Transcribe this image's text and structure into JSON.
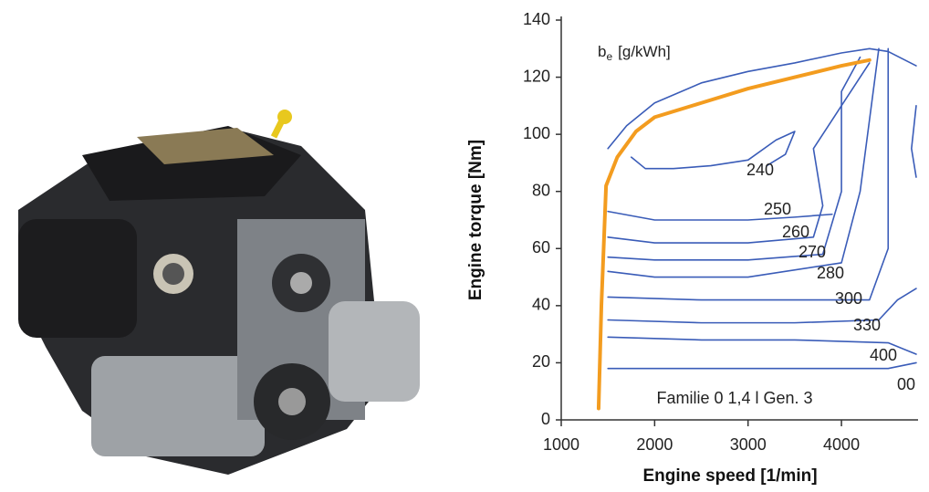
{
  "chart_data": {
    "type": "line",
    "xlabel": "Engine speed  [1/min]",
    "ylabel": "Engine torque  [Nm]",
    "zlabel_symbol": "b",
    "zlabel_sub": "e",
    "zlabel_unit": "[g/kWh]",
    "annotation": "Familie 0 1,4 l Gen. 3",
    "contour_labels": [
      "240",
      "250",
      "260",
      "270",
      "280",
      "300",
      "330",
      "400",
      "00"
    ],
    "xlim": [
      1000,
      4820
    ],
    "xticks": [
      1000,
      2000,
      3000,
      4000
    ],
    "ylim": [
      0,
      140
    ],
    "yticks": [
      0,
      20,
      40,
      60,
      80,
      100,
      120,
      140
    ],
    "series": [
      {
        "color": "#f39c1f",
        "x": [
          1400,
          1430,
          1480,
          1600,
          1800,
          2000,
          2500,
          3000,
          3500,
          4000,
          4300
        ],
        "values": [
          4,
          40,
          82,
          92,
          101,
          106,
          111,
          116,
          120,
          124,
          126
        ]
      }
    ],
    "contours": [
      {
        "color": "#3a5cb8",
        "x": [
          1500,
          1700,
          2000,
          2500,
          3000,
          3500,
          4000,
          4300,
          4500,
          4800
        ],
        "values": [
          95,
          103,
          111,
          118,
          122,
          125,
          128.5,
          130,
          129,
          124
        ]
      },
      {
        "color": "#3a5cb8",
        "x": [
          1750,
          1900,
          2200,
          2600,
          3000,
          3300,
          3500,
          3400,
          3200
        ],
        "values": [
          92,
          88,
          88,
          89,
          91,
          98,
          101,
          93,
          89
        ]
      },
      {
        "color": "#3a5cb8",
        "x": [
          1500,
          2000,
          3000,
          3500,
          3900
        ],
        "values": [
          73,
          70,
          70,
          71,
          72
        ]
      },
      {
        "color": "#3a5cb8",
        "x": [
          1500,
          2000,
          3000,
          3700,
          3800,
          3700,
          4000,
          4300
        ],
        "values": [
          64,
          62,
          62,
          64,
          75,
          95,
          110,
          125
        ]
      },
      {
        "color": "#3a5cb8",
        "x": [
          1500,
          2000,
          3000,
          3800,
          4000,
          4000,
          4200
        ],
        "values": [
          57,
          56,
          56,
          58,
          80,
          115,
          127
        ]
      },
      {
        "color": "#3a5cb8",
        "x": [
          1500,
          2000,
          3000,
          4000,
          4200,
          4400
        ],
        "values": [
          52,
          50,
          50,
          55,
          80,
          130
        ]
      },
      {
        "color": "#3a5cb8",
        "x": [
          1500,
          2500,
          3500,
          4300,
          4500,
          4500
        ],
        "values": [
          43,
          42,
          42,
          42,
          60,
          130
        ]
      },
      {
        "color": "#3a5cb8",
        "x": [
          1500,
          2500,
          3500,
          4400,
          4600,
          4800
        ],
        "values": [
          35,
          34,
          34,
          35,
          42,
          46
        ]
      },
      {
        "color": "#3a5cb8",
        "x": [
          1500,
          2500,
          3500,
          4500,
          4800
        ],
        "values": [
          29,
          28,
          28,
          27,
          23
        ]
      },
      {
        "color": "#3a5cb8",
        "x": [
          1500,
          2500,
          3500,
          4500,
          4800
        ],
        "values": [
          18,
          18,
          18,
          18,
          20
        ]
      },
      {
        "color": "#3a5cb8",
        "x": [
          4800,
          4750,
          4800
        ],
        "values": [
          110,
          95,
          85
        ]
      }
    ]
  }
}
